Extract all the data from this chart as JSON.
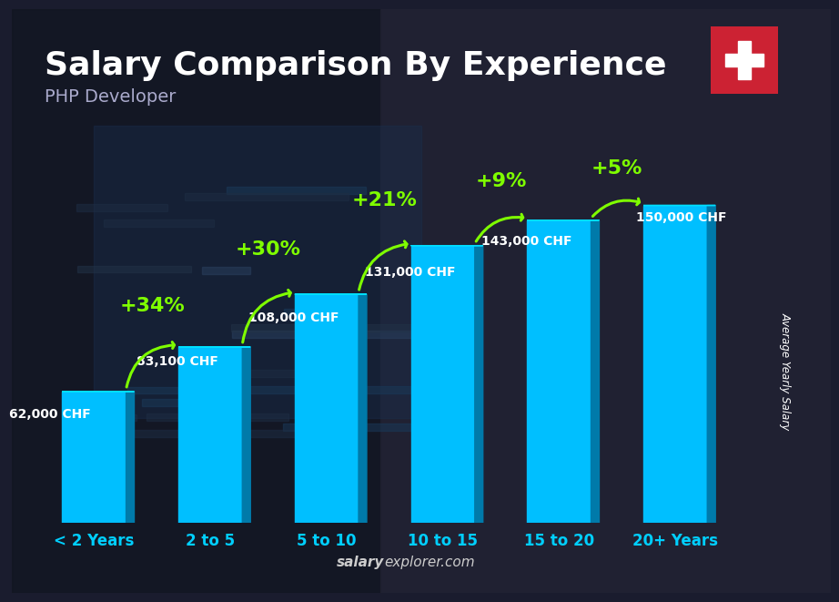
{
  "title": "Salary Comparison By Experience",
  "subtitle": "PHP Developer",
  "categories": [
    "< 2 Years",
    "2 to 5",
    "5 to 10",
    "10 to 15",
    "15 to 20",
    "20+ Years"
  ],
  "values": [
    62000,
    83100,
    108000,
    131000,
    143000,
    150000
  ],
  "salary_labels": [
    "62,000 CHF",
    "83,100 CHF",
    "108,000 CHF",
    "131,000 CHF",
    "143,000 CHF",
    "150,000 CHF"
  ],
  "pct_labels": [
    "+34%",
    "+30%",
    "+21%",
    "+9%",
    "+5%"
  ],
  "bar_color_front": "#00bfff",
  "bar_color_side": "#007aaa",
  "bar_color_top": "#00dfff",
  "bg_color": "#1a1c2e",
  "text_color_white": "#ffffff",
  "text_color_cyan": "#00cfff",
  "text_color_green": "#7fff00",
  "ylabel": "Average Yearly Salary",
  "watermark_bold": "salary",
  "watermark_normal": "explorer.com",
  "flag_bg": "#cc2233",
  "flag_cross": "#ffffff",
  "title_fontsize": 26,
  "subtitle_fontsize": 14,
  "category_fontsize": 12,
  "salary_label_fontsize": 10,
  "pct_fontsize": 16
}
